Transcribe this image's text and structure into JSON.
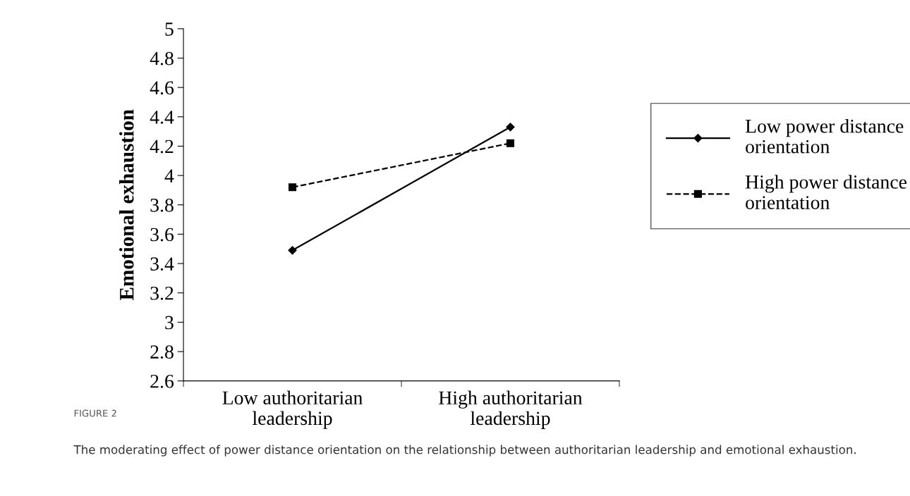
{
  "chart_data": {
    "type": "line",
    "ylabel": "Emotional exhaustion",
    "categories": [
      "Low authoritarian\nleadership",
      "High authoritarian\nleadership"
    ],
    "series": [
      {
        "name": "Low power distance\norientation",
        "color": "#000000",
        "values": [
          3.49,
          4.33
        ],
        "marker": "diamond",
        "line_style": "solid"
      },
      {
        "name": "High power distance\norientation",
        "color": "#000000",
        "values": [
          3.92,
          4.22
        ],
        "marker": "square",
        "line_style": "dashed"
      }
    ],
    "ylim": [
      2.6,
      5
    ],
    "yticks": [
      2.6,
      2.8,
      3,
      3.2,
      3.4,
      3.6,
      3.8,
      4,
      4.2,
      4.4,
      4.6,
      4.8,
      5
    ],
    "grid": false,
    "legend": "right",
    "annotations": [
      "FIGURE 2",
      "The moderating effect of power distance orientation on the relationship between authoritarian leadership and emotional exhaustion."
    ]
  }
}
